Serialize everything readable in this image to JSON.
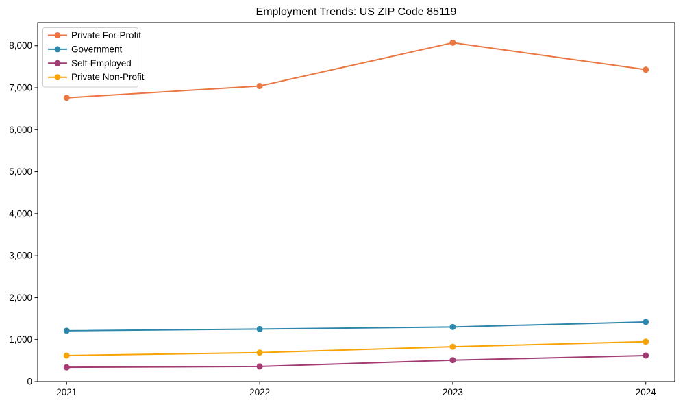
{
  "figure": {
    "background": "#ffffff",
    "text_color": "#000000",
    "spine_color": "#000000",
    "legend_border_color": "#cccccc",
    "legend_background": "#ffffff"
  },
  "chart_data": {
    "type": "line",
    "title": "Employment Trends: US ZIP Code 85119",
    "xlabel": "",
    "ylabel": "",
    "x": [
      2021,
      2022,
      2023,
      2024
    ],
    "x_tick_labels": [
      "2021",
      "2022",
      "2023",
      "2024"
    ],
    "yticks": [
      0,
      1000,
      2000,
      3000,
      4000,
      5000,
      6000,
      7000,
      8000
    ],
    "ytick_labels": [
      "0",
      "1,000",
      "2,000",
      "3,000",
      "4,000",
      "5,000",
      "6,000",
      "7,000",
      "8,000"
    ],
    "xlim": [
      2020.85,
      2024.15
    ],
    "ylim": [
      0,
      8550
    ],
    "grid": false,
    "legend_position": "upper-left",
    "marker": "circle",
    "series": [
      {
        "name": "Private For-Profit",
        "color": "#EA7642",
        "values": [
          6760,
          7040,
          8070,
          7430
        ]
      },
      {
        "name": "Government",
        "color": "#2E86AB",
        "values": [
          1210,
          1250,
          1300,
          1420
        ]
      },
      {
        "name": "Self-Employed",
        "color": "#A23B72",
        "values": [
          340,
          360,
          510,
          620
        ]
      },
      {
        "name": "Private Non-Profit",
        "color": "#F7A308",
        "values": [
          620,
          690,
          830,
          950
        ]
      }
    ]
  }
}
